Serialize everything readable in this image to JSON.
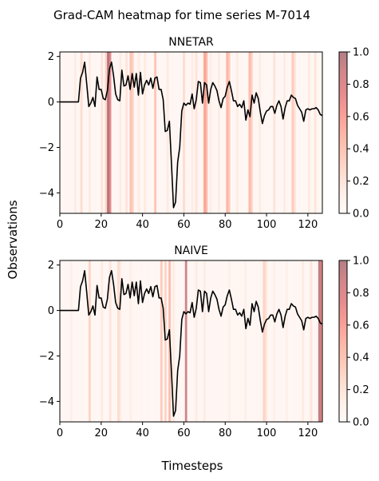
{
  "figure": {
    "suptitle": "Grad-CAM heatmap for time series M-7014",
    "xlabel": "Timesteps",
    "ylabel": "Observations"
  },
  "chart_data": [
    {
      "type": "line",
      "title": "NNETAR",
      "xlim": [
        0,
        127
      ],
      "ylim": [
        -4.9,
        2.2
      ],
      "xticks": [
        "0",
        "20",
        "40",
        "60",
        "80",
        "100",
        "120"
      ],
      "yticks": [
        "2",
        "0",
        "−2",
        "−4"
      ],
      "series": [
        {
          "color": "#000000",
          "x": [
            0,
            1,
            2,
            3,
            4,
            5,
            6,
            7,
            8,
            9,
            10,
            11,
            12,
            13,
            14,
            15,
            16,
            17,
            18,
            19,
            20,
            21,
            22,
            23,
            24,
            25,
            26,
            27,
            28,
            29,
            30,
            31,
            32,
            33,
            34,
            35,
            36,
            37,
            38,
            39,
            40,
            41,
            42,
            43,
            44,
            45,
            46,
            47,
            48,
            49,
            50,
            51,
            52,
            53,
            54,
            55,
            56,
            57,
            58,
            59,
            60,
            61,
            62,
            63,
            64,
            65,
            66,
            67,
            68,
            69,
            70,
            71,
            72,
            73,
            74,
            75,
            76,
            77,
            78,
            79,
            80,
            81,
            82,
            83,
            84,
            85,
            86,
            87,
            88,
            89,
            90,
            91,
            92,
            93,
            94,
            95,
            96,
            97,
            98,
            99,
            100,
            101,
            102,
            103,
            104,
            105,
            106,
            107,
            108,
            109,
            110,
            111,
            112,
            113,
            114,
            115,
            116,
            117,
            118,
            119,
            120,
            121,
            122,
            123,
            124,
            125,
            126,
            127
          ],
          "y": [
            0,
            0,
            0,
            0,
            0,
            0,
            0,
            0,
            0,
            0,
            1.05,
            1.3,
            1.75,
            0.8,
            -0.2,
            -0.05,
            0.2,
            -0.2,
            1.1,
            0.55,
            0.55,
            0.15,
            0.1,
            0.5,
            1.45,
            1.75,
            1.15,
            0.35,
            0.1,
            0.05,
            1.4,
            0.7,
            0.75,
            1.15,
            0.55,
            1.25,
            0.65,
            1.25,
            0.3,
            1.3,
            0.35,
            0.75,
            0.95,
            0.75,
            1.05,
            0.6,
            1.05,
            1.1,
            0.55,
            0.55,
            0.1,
            -1.3,
            -1.25,
            -0.85,
            -2.7,
            -4.65,
            -4.4,
            -2.65,
            -2.0,
            -0.4,
            -0.05,
            -0.15,
            -0.05,
            -0.1,
            0.35,
            -0.3,
            0.1,
            0.9,
            0.85,
            -0.05,
            0.85,
            0.75,
            -0.05,
            0.55,
            0.85,
            0.7,
            0.5,
            0.05,
            -0.25,
            0.15,
            0.25,
            0.65,
            0.9,
            0.5,
            0.05,
            0.05,
            -0.2,
            -0.1,
            -0.25,
            0.05,
            -0.8,
            -0.35,
            -0.65,
            0.3,
            -0.05,
            0.4,
            0.15,
            -0.45,
            -0.95,
            -0.6,
            -0.4,
            -0.35,
            -0.2,
            -0.2,
            -0.5,
            -0.15,
            0.05,
            -0.2,
            -0.75,
            -0.25,
            0.05,
            0.05,
            0.3,
            0.2,
            0.15,
            -0.15,
            -0.3,
            -0.45,
            -0.85,
            -0.35,
            -0.3,
            -0.35,
            -0.3,
            -0.3,
            -0.25,
            -0.35,
            -0.55,
            -0.6
          ]
        }
      ],
      "heatmap": {
        "colormap": "Reds",
        "alpha": 0.5,
        "colorbar_ticks": [
          "0.0",
          "0.2",
          "0.4",
          "0.6",
          "0.8",
          "1.0"
        ],
        "high_activations": [
          {
            "x": 23,
            "value": 1.0
          },
          {
            "x": 24,
            "value": 0.75
          },
          {
            "x": 7,
            "value": 0.15
          },
          {
            "x": 10,
            "value": 0.25
          },
          {
            "x": 14,
            "value": 0.15
          },
          {
            "x": 20,
            "value": 0.2
          },
          {
            "x": 22,
            "value": 0.3
          },
          {
            "x": 29,
            "value": 0.15
          },
          {
            "x": 32,
            "value": 0.2
          },
          {
            "x": 34,
            "value": 0.4
          },
          {
            "x": 35,
            "value": 0.3
          },
          {
            "x": 38,
            "value": 0.15
          },
          {
            "x": 41,
            "value": 0.15
          },
          {
            "x": 46,
            "value": 0.4
          },
          {
            "x": 52,
            "value": 0.15
          },
          {
            "x": 60,
            "value": 0.25
          },
          {
            "x": 64,
            "value": 0.15
          },
          {
            "x": 66,
            "value": 0.2
          },
          {
            "x": 70,
            "value": 0.55
          },
          {
            "x": 71,
            "value": 0.45
          },
          {
            "x": 73,
            "value": 0.15
          },
          {
            "x": 77,
            "value": 0.15
          },
          {
            "x": 81,
            "value": 0.45
          },
          {
            "x": 82,
            "value": 0.35
          },
          {
            "x": 86,
            "value": 0.15
          },
          {
            "x": 92,
            "value": 0.45
          },
          {
            "x": 93,
            "value": 0.3
          },
          {
            "x": 97,
            "value": 0.15
          },
          {
            "x": 104,
            "value": 0.2
          },
          {
            "x": 109,
            "value": 0.15
          },
          {
            "x": 113,
            "value": 0.35
          },
          {
            "x": 114,
            "value": 0.2
          },
          {
            "x": 121,
            "value": 0.15
          },
          {
            "x": 124,
            "value": 0.2
          }
        ],
        "base_value": 0.03
      }
    },
    {
      "type": "line",
      "title": "NAIVE",
      "xlim": [
        0,
        127
      ],
      "ylim": [
        -4.9,
        2.2
      ],
      "xticks": [
        "0",
        "20",
        "40",
        "60",
        "80",
        "100",
        "120"
      ],
      "yticks": [
        "2",
        "0",
        "−2",
        "−4"
      ],
      "series": [
        {
          "color": "#000000",
          "x": [
            0,
            1,
            2,
            3,
            4,
            5,
            6,
            7,
            8,
            9,
            10,
            11,
            12,
            13,
            14,
            15,
            16,
            17,
            18,
            19,
            20,
            21,
            22,
            23,
            24,
            25,
            26,
            27,
            28,
            29,
            30,
            31,
            32,
            33,
            34,
            35,
            36,
            37,
            38,
            39,
            40,
            41,
            42,
            43,
            44,
            45,
            46,
            47,
            48,
            49,
            50,
            51,
            52,
            53,
            54,
            55,
            56,
            57,
            58,
            59,
            60,
            61,
            62,
            63,
            64,
            65,
            66,
            67,
            68,
            69,
            70,
            71,
            72,
            73,
            74,
            75,
            76,
            77,
            78,
            79,
            80,
            81,
            82,
            83,
            84,
            85,
            86,
            87,
            88,
            89,
            90,
            91,
            92,
            93,
            94,
            95,
            96,
            97,
            98,
            99,
            100,
            101,
            102,
            103,
            104,
            105,
            106,
            107,
            108,
            109,
            110,
            111,
            112,
            113,
            114,
            115,
            116,
            117,
            118,
            119,
            120,
            121,
            122,
            123,
            124,
            125,
            126,
            127
          ],
          "y": [
            0,
            0,
            0,
            0,
            0,
            0,
            0,
            0,
            0,
            0,
            1.05,
            1.3,
            1.75,
            0.8,
            -0.2,
            -0.05,
            0.2,
            -0.2,
            1.1,
            0.55,
            0.55,
            0.15,
            0.1,
            0.5,
            1.45,
            1.75,
            1.15,
            0.35,
            0.1,
            0.05,
            1.4,
            0.7,
            0.75,
            1.15,
            0.55,
            1.25,
            0.65,
            1.25,
            0.3,
            1.3,
            0.35,
            0.75,
            0.95,
            0.75,
            1.05,
            0.6,
            1.05,
            1.1,
            0.55,
            0.55,
            0.1,
            -1.3,
            -1.25,
            -0.85,
            -2.7,
            -4.65,
            -4.4,
            -2.65,
            -2.0,
            -0.4,
            -0.05,
            -0.15,
            -0.05,
            -0.1,
            0.35,
            -0.3,
            0.1,
            0.9,
            0.85,
            -0.05,
            0.85,
            0.75,
            -0.05,
            0.55,
            0.85,
            0.7,
            0.5,
            0.05,
            -0.25,
            0.15,
            0.25,
            0.65,
            0.9,
            0.5,
            0.05,
            0.05,
            -0.2,
            -0.1,
            -0.25,
            0.05,
            -0.8,
            -0.35,
            -0.65,
            0.3,
            -0.05,
            0.4,
            0.15,
            -0.45,
            -0.95,
            -0.6,
            -0.4,
            -0.35,
            -0.2,
            -0.2,
            -0.5,
            -0.15,
            0.05,
            -0.2,
            -0.75,
            -0.25,
            0.05,
            0.05,
            0.3,
            0.2,
            0.15,
            -0.15,
            -0.3,
            -0.45,
            -0.85,
            -0.35,
            -0.3,
            -0.35,
            -0.3,
            -0.3,
            -0.25,
            -0.35,
            -0.55,
            -0.6
          ]
        }
      ],
      "heatmap": {
        "colormap": "Reds",
        "alpha": 0.5,
        "colorbar_ticks": [
          "0.0",
          "0.2",
          "0.4",
          "0.6",
          "0.8",
          "1.0"
        ],
        "high_activations": [
          {
            "x": 61,
            "value": 0.9
          },
          {
            "x": 126,
            "value": 0.95
          },
          {
            "x": 127,
            "value": 0.7
          },
          {
            "x": 14,
            "value": 0.3
          },
          {
            "x": 5,
            "value": 0.12
          },
          {
            "x": 20,
            "value": 0.15
          },
          {
            "x": 24,
            "value": 0.2
          },
          {
            "x": 28,
            "value": 0.25
          },
          {
            "x": 29,
            "value": 0.15
          },
          {
            "x": 34,
            "value": 0.12
          },
          {
            "x": 49,
            "value": 0.35
          },
          {
            "x": 51,
            "value": 0.3
          },
          {
            "x": 53,
            "value": 0.45
          },
          {
            "x": 55,
            "value": 0.15
          },
          {
            "x": 66,
            "value": 0.15
          },
          {
            "x": 70,
            "value": 0.15
          },
          {
            "x": 82,
            "value": 0.12
          },
          {
            "x": 90,
            "value": 0.12
          },
          {
            "x": 99,
            "value": 0.3
          },
          {
            "x": 100,
            "value": 0.2
          },
          {
            "x": 104,
            "value": 0.12
          },
          {
            "x": 110,
            "value": 0.12
          },
          {
            "x": 118,
            "value": 0.15
          },
          {
            "x": 122,
            "value": 0.2
          }
        ],
        "base_value": 0.03
      }
    }
  ]
}
